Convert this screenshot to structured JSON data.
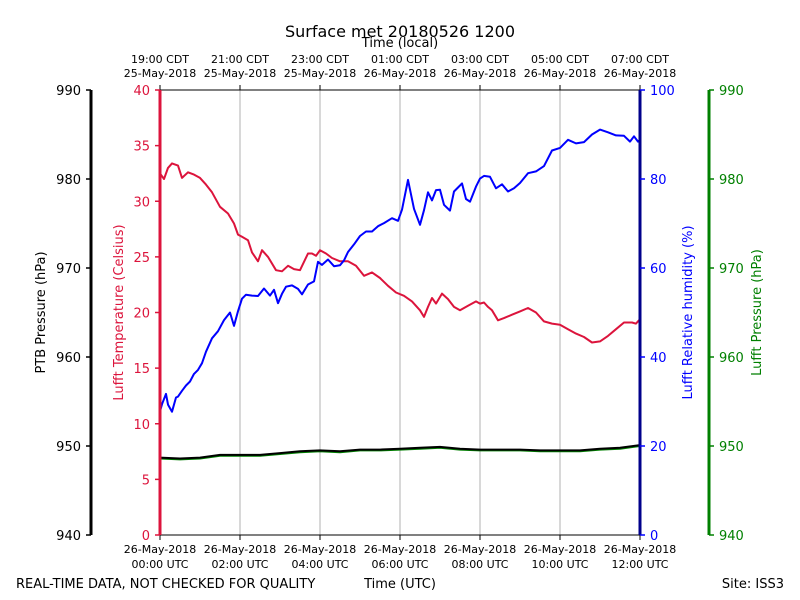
{
  "chart_data": {
    "type": "line",
    "title": "Surface met 20180526 1200",
    "top_axis_label": "Time (local)",
    "xlabel": "Time (UTC)",
    "footer_left": "REAL-TIME DATA, NOT CHECKED FOR QUALITY",
    "footer_right": "Site: ISS3",
    "x_range_hours_utc": [
      0,
      12
    ],
    "bottom_ticks": [
      {
        "hour": 0,
        "date": "26-May-2018",
        "time": "00:00 UTC"
      },
      {
        "hour": 2,
        "date": "26-May-2018",
        "time": "02:00 UTC"
      },
      {
        "hour": 4,
        "date": "26-May-2018",
        "time": "04:00 UTC"
      },
      {
        "hour": 6,
        "date": "26-May-2018",
        "time": "06:00 UTC"
      },
      {
        "hour": 8,
        "date": "26-May-2018",
        "time": "08:00 UTC"
      },
      {
        "hour": 10,
        "date": "26-May-2018",
        "time": "10:00 UTC"
      },
      {
        "hour": 12,
        "date": "26-May-2018",
        "time": "12:00 UTC"
      }
    ],
    "top_ticks": [
      {
        "hour": 0,
        "time": "19:00 CDT",
        "date": "25-May-2018"
      },
      {
        "hour": 2,
        "time": "21:00 CDT",
        "date": "25-May-2018"
      },
      {
        "hour": 4,
        "time": "23:00 CDT",
        "date": "25-May-2018"
      },
      {
        "hour": 6,
        "time": "01:00 CDT",
        "date": "26-May-2018"
      },
      {
        "hour": 8,
        "time": "03:00 CDT",
        "date": "26-May-2018"
      },
      {
        "hour": 10,
        "time": "05:00 CDT",
        "date": "26-May-2018"
      },
      {
        "hour": 12,
        "time": "07:00 CDT",
        "date": "26-May-2018"
      }
    ],
    "axes": {
      "ptb_pressure": {
        "label": "PTB Pressure (hPa)",
        "range": [
          940,
          990
        ],
        "ticks": [
          940,
          950,
          960,
          970,
          980,
          990
        ],
        "color": "#000000"
      },
      "temperature": {
        "label": "Lufft Temperature (Celsius)",
        "range": [
          0,
          40
        ],
        "ticks": [
          0,
          5,
          10,
          15,
          20,
          25,
          30,
          35,
          40
        ],
        "color": "#dc143c"
      },
      "humidity": {
        "label": "Lufft Relative humidity (%)",
        "range": [
          0,
          100
        ],
        "ticks": [
          0,
          20,
          40,
          60,
          80,
          100
        ],
        "color": "#0000ff"
      },
      "lufft_pressure": {
        "label": "Lufft Pressure (hPa)",
        "range": [
          940,
          990
        ],
        "ticks": [
          940,
          950,
          960,
          970,
          980,
          990
        ],
        "color": "#008000"
      }
    },
    "series": [
      {
        "name": "Lufft Temperature",
        "axis": "temperature",
        "color": "#dc143c",
        "x": [
          0,
          0.1,
          0.2,
          0.3,
          0.45,
          0.55,
          0.7,
          0.85,
          1.0,
          1.15,
          1.3,
          1.5,
          1.7,
          1.85,
          1.95,
          2.05,
          2.2,
          2.3,
          2.45,
          2.55,
          2.7,
          2.9,
          3.05,
          3.2,
          3.35,
          3.5,
          3.7,
          3.8,
          3.9,
          4.0,
          4.15,
          4.3,
          4.5,
          4.7,
          4.9,
          5.1,
          5.3,
          5.5,
          5.7,
          5.9,
          6.1,
          6.3,
          6.5,
          6.6,
          6.7,
          6.8,
          6.9,
          7.05,
          7.2,
          7.35,
          7.5,
          7.6,
          7.7,
          7.9,
          8.0,
          8.1,
          8.2,
          8.3,
          8.45,
          8.6,
          8.8,
          9.0,
          9.2,
          9.4,
          9.6,
          9.8,
          10.0,
          10.2,
          10.4,
          10.6,
          10.8,
          11.0,
          11.2,
          11.4,
          11.6,
          11.8,
          11.9,
          12.0
        ],
        "values": [
          32.5,
          32.0,
          33.0,
          33.4,
          33.2,
          32.1,
          32.6,
          32.4,
          32.1,
          31.5,
          30.8,
          29.5,
          28.9,
          28.0,
          27.0,
          26.8,
          26.5,
          25.4,
          24.6,
          25.6,
          25.0,
          23.8,
          23.7,
          24.2,
          23.9,
          23.8,
          25.3,
          25.3,
          25.1,
          25.6,
          25.3,
          24.9,
          24.6,
          24.6,
          24.2,
          23.3,
          23.6,
          23.1,
          22.4,
          21.8,
          21.5,
          21.0,
          20.2,
          19.6,
          20.5,
          21.3,
          20.8,
          21.7,
          21.2,
          20.5,
          20.2,
          20.4,
          20.6,
          21.0,
          20.8,
          20.9,
          20.5,
          20.2,
          19.3,
          19.5,
          19.8,
          20.1,
          20.4,
          20.0,
          19.2,
          19.0,
          18.9,
          18.5,
          18.1,
          17.8,
          17.3,
          17.4,
          17.9,
          18.5,
          19.1,
          19.1,
          19.0,
          19.4
        ]
      },
      {
        "name": "Lufft Relative humidity",
        "axis": "humidity",
        "color": "#0000ff",
        "x": [
          0,
          0.05,
          0.15,
          0.2,
          0.3,
          0.4,
          0.45,
          0.55,
          0.65,
          0.75,
          0.85,
          0.95,
          1.05,
          1.15,
          1.3,
          1.45,
          1.6,
          1.75,
          1.85,
          1.95,
          2.05,
          2.15,
          2.3,
          2.45,
          2.6,
          2.75,
          2.85,
          2.95,
          3.05,
          3.15,
          3.3,
          3.45,
          3.55,
          3.7,
          3.85,
          3.95,
          4.05,
          4.2,
          4.35,
          4.5,
          4.6,
          4.7,
          4.85,
          5.0,
          5.15,
          5.3,
          5.45,
          5.6,
          5.8,
          5.95,
          6.05,
          6.2,
          6.35,
          6.5,
          6.6,
          6.7,
          6.8,
          6.9,
          7.0,
          7.1,
          7.25,
          7.35,
          7.45,
          7.55,
          7.65,
          7.75,
          7.9,
          8.0,
          8.1,
          8.25,
          8.4,
          8.55,
          8.7,
          8.85,
          9.0,
          9.2,
          9.4,
          9.6,
          9.8,
          10.0,
          10.2,
          10.4,
          10.6,
          10.8,
          11.0,
          11.2,
          11.4,
          11.6,
          11.75,
          11.85,
          11.95,
          12.0
        ],
        "values": [
          27.8,
          29.4,
          31.7,
          29.3,
          27.7,
          30.9,
          31.1,
          32.4,
          33.6,
          34.5,
          36.2,
          37.1,
          38.6,
          41.2,
          44.2,
          45.8,
          48.3,
          50.0,
          47.0,
          50.3,
          53.1,
          54.0,
          53.8,
          53.7,
          55.4,
          53.8,
          55.1,
          52.1,
          54.2,
          55.8,
          56.1,
          55.3,
          54.1,
          56.3,
          57.0,
          61.4,
          60.7,
          61.9,
          60.4,
          60.6,
          61.7,
          63.6,
          65.3,
          67.2,
          68.2,
          68.2,
          69.4,
          70.1,
          71.2,
          70.6,
          73.1,
          79.8,
          73.3,
          69.7,
          73.0,
          77.0,
          75.2,
          77.5,
          77.6,
          74.2,
          72.9,
          77.2,
          78.1,
          79.0,
          75.5,
          74.9,
          78.3,
          80.1,
          80.7,
          80.5,
          77.9,
          78.8,
          77.2,
          77.9,
          79.1,
          81.3,
          81.7,
          82.9,
          86.4,
          87.0,
          88.8,
          88.0,
          88.3,
          90.0,
          91.1,
          90.5,
          89.8,
          89.7,
          88.4,
          89.6,
          88.4,
          88.8
        ]
      },
      {
        "name": "Lufft Pressure",
        "axis": "lufft_pressure",
        "color": "#008000",
        "x": [
          0,
          0.5,
          1.0,
          1.5,
          2.0,
          2.5,
          3.0,
          3.5,
          4.0,
          4.5,
          5.0,
          5.5,
          6.0,
          6.5,
          7.0,
          7.5,
          8.0,
          8.5,
          9.0,
          9.5,
          10.0,
          10.5,
          11.0,
          11.5,
          12.0
        ],
        "values": [
          948.6,
          948.5,
          948.6,
          948.9,
          948.9,
          948.9,
          949.1,
          949.3,
          949.4,
          949.3,
          949.5,
          949.5,
          949.6,
          949.7,
          949.8,
          949.6,
          949.5,
          949.5,
          949.5,
          949.4,
          949.4,
          949.4,
          949.6,
          949.7,
          950.0
        ]
      },
      {
        "name": "PTB Pressure",
        "axis": "ptb_pressure",
        "color": "#000000",
        "x": [
          0,
          0.5,
          1.0,
          1.5,
          2.0,
          2.5,
          3.0,
          3.5,
          4.0,
          4.5,
          5.0,
          5.5,
          6.0,
          6.5,
          7.0,
          7.5,
          8.0,
          8.5,
          9.0,
          9.5,
          10.0,
          10.5,
          11.0,
          11.5,
          12.0
        ],
        "values": [
          948.7,
          948.6,
          948.7,
          949.0,
          949.0,
          949.0,
          949.2,
          949.4,
          949.5,
          949.4,
          949.6,
          949.6,
          949.7,
          949.8,
          949.9,
          949.7,
          949.6,
          949.6,
          949.6,
          949.5,
          949.5,
          949.5,
          949.7,
          949.8,
          950.1
        ]
      }
    ]
  }
}
